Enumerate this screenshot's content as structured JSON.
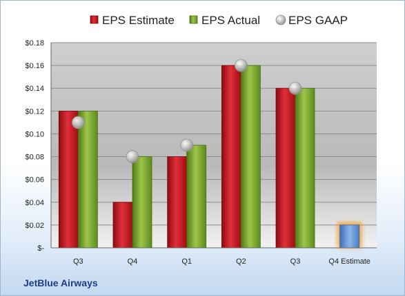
{
  "chart_data": {
    "type": "bar",
    "title": "",
    "xlabel": "",
    "ylabel": "",
    "categories": [
      "Q3",
      "Q4",
      "Q1",
      "Q2",
      "Q3",
      "Q4 Estimate"
    ],
    "y_ticks": [
      "$-",
      "$0.02",
      "$0.04",
      "$0.06",
      "$0.08",
      "$0.10",
      "$0.12",
      "$0.14",
      "$0.16",
      "$0.18"
    ],
    "ylim": [
      0,
      0.18
    ],
    "grid": true,
    "legend_position": "top",
    "series": [
      {
        "name": "EPS Estimate",
        "kind": "bar",
        "color": "#c8141e",
        "values": [
          0.12,
          0.04,
          0.08,
          0.16,
          0.14,
          null
        ]
      },
      {
        "name": "EPS Actual",
        "kind": "bar",
        "color": "#7aa32a",
        "values": [
          0.12,
          0.08,
          0.09,
          0.16,
          0.14,
          null
        ]
      },
      {
        "name": "EPS GAAP",
        "kind": "marker",
        "color": "#b4b4b4",
        "values": [
          0.11,
          0.08,
          0.09,
          0.16,
          0.14,
          null
        ]
      }
    ],
    "forecast": {
      "category": "Q4 Estimate",
      "value": 0.02,
      "color": "#5b8fd6",
      "glow": "#f0a030"
    }
  },
  "company": "JetBlue Airways"
}
